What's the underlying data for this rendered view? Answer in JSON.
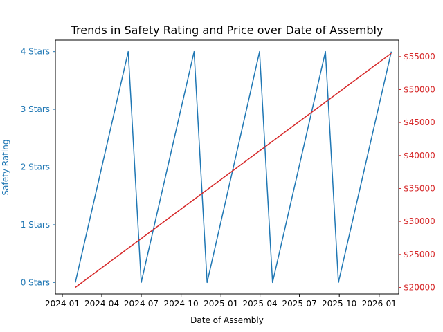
{
  "chart_data": {
    "type": "line",
    "title": "Trends in Safety Rating and Price over Date of Assembly",
    "xlabel": "Date of Assembly",
    "ylabel_left": "Safety Rating",
    "ylabel_right": "",
    "x_range": [
      "2023-12-16",
      "2026-02-15"
    ],
    "x_ticks": [
      "2024-01",
      "2024-04",
      "2024-07",
      "2024-10",
      "2025-01",
      "2025-04",
      "2025-07",
      "2025-10",
      "2026-01"
    ],
    "left_axis": {
      "range": [
        -0.2,
        4.2
      ],
      "ticks": [
        0,
        1,
        2,
        3,
        4
      ],
      "tick_labels": [
        "0 Stars",
        "1 Stars",
        "2 Stars",
        "3 Stars",
        "4 Stars"
      ],
      "color": "#1f77b4"
    },
    "right_axis": {
      "range": [
        19000,
        57500
      ],
      "ticks": [
        20000,
        25000,
        30000,
        35000,
        40000,
        45000,
        50000,
        55000
      ],
      "tick_labels": [
        "$20000",
        "$25000",
        "$30000",
        "$35000",
        "$40000",
        "$45000",
        "$50000",
        "$55000"
      ],
      "color": "#d62728"
    },
    "series": [
      {
        "axis": "left",
        "color": "#1f77b4",
        "points": [
          {
            "x": "2024-01-31",
            "y": 0
          },
          {
            "x": "2024-06-01",
            "y": 4
          },
          {
            "x": "2024-07-01",
            "y": 0
          },
          {
            "x": "2024-10-31",
            "y": 4
          },
          {
            "x": "2024-11-30",
            "y": 0
          },
          {
            "x": "2025-03-01",
            "y": 3
          },
          {
            "x": "2025-03-31",
            "y": 4
          },
          {
            "x": "2025-04-30",
            "y": 0
          },
          {
            "x": "2025-08-30",
            "y": 4
          },
          {
            "x": "2025-09-29",
            "y": 0
          },
          {
            "x": "2026-01-29",
            "y": 4
          }
        ]
      },
      {
        "axis": "right",
        "color": "#d62728",
        "points": [
          {
            "x": "2024-01-31",
            "y": 20000
          },
          {
            "x": "2026-01-29",
            "y": 55500
          }
        ]
      }
    ]
  }
}
